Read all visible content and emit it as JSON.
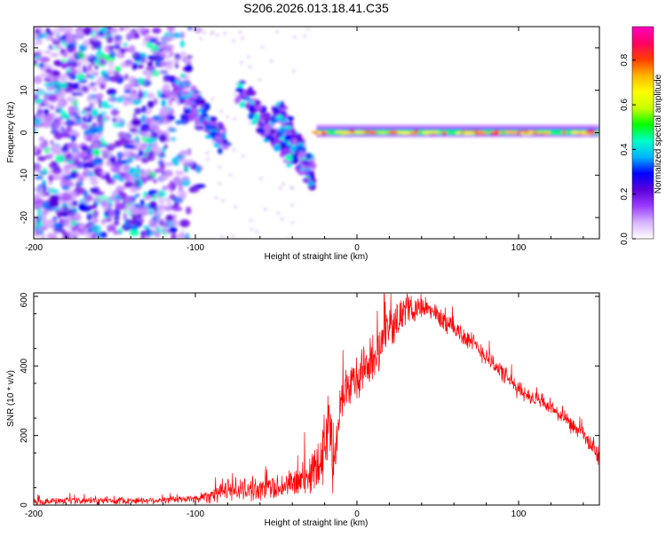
{
  "page": {
    "title": "S206.2026.013.18.41.C35"
  },
  "chart_data": [
    {
      "type": "heatmap",
      "name": "spectrogram",
      "xlabel": "Height of straight line (km)",
      "ylabel": "Frequency (Hz)",
      "xlim": [
        -200,
        150
      ],
      "ylim": [
        -25,
        25
      ],
      "xticks": [
        -200,
        -100,
        0,
        100
      ],
      "yticks": [
        -20,
        -10,
        0,
        10,
        20
      ],
      "colorbar": {
        "label": "Normalized spectral amplitude",
        "range": [
          0,
          0.95
        ],
        "ticks": [
          "0.0",
          "0.2",
          "0.4",
          "0.6",
          "0.8"
        ],
        "colors": [
          "#ffffff",
          "#d8b4ff",
          "#9a3cff",
          "#5a00d8",
          "#0000ff",
          "#00b4ff",
          "#00ffc8",
          "#00ff00",
          "#c8ff00",
          "#ffff00",
          "#ffb400",
          "#ff3c00",
          "#ff0064",
          "#ff00c0"
        ]
      },
      "features": {
        "noise_region_x": [
          -200,
          -100
        ],
        "dispersive_segments": [
          {
            "x": [
              -112,
              -82
            ],
            "y": [
              12,
              -2
            ]
          },
          {
            "x": [
              -72,
              -40
            ],
            "y": [
              10,
              -6
            ]
          },
          {
            "x": [
              -50,
              -27
            ],
            "y": [
              6,
              -11
            ]
          }
        ],
        "carrier_line": {
          "x": [
            -25,
            150
          ],
          "y": 0
        }
      }
    },
    {
      "type": "line",
      "name": "snr",
      "xlabel": "Height of straight line (km)",
      "ylabel": "SNR (10 * v/v)",
      "xlim": [
        -200,
        150
      ],
      "ylim": [
        0,
        610
      ],
      "xticks": [
        -200,
        -100,
        0,
        100
      ],
      "yticks": [
        0,
        200,
        400,
        600
      ],
      "color": "#ff0000",
      "envelope": {
        "x": [
          -200,
          -120,
          -100,
          -90,
          -80,
          -60,
          -40,
          -30,
          -25,
          -20,
          -18,
          -15,
          -10,
          0,
          10,
          20,
          30,
          40,
          50,
          60,
          80,
          100,
          120,
          140,
          150
        ],
        "mean": [
          10,
          14,
          18,
          30,
          45,
          45,
          60,
          80,
          120,
          170,
          260,
          120,
          320,
          360,
          420,
          510,
          560,
          570,
          545,
          510,
          430,
          330,
          280,
          200,
          140
        ],
        "amp": [
          12,
          12,
          15,
          30,
          40,
          40,
          50,
          70,
          90,
          120,
          160,
          110,
          80,
          80,
          80,
          70,
          50,
          40,
          40,
          40,
          35,
          30,
          25,
          30,
          35
        ]
      }
    }
  ]
}
